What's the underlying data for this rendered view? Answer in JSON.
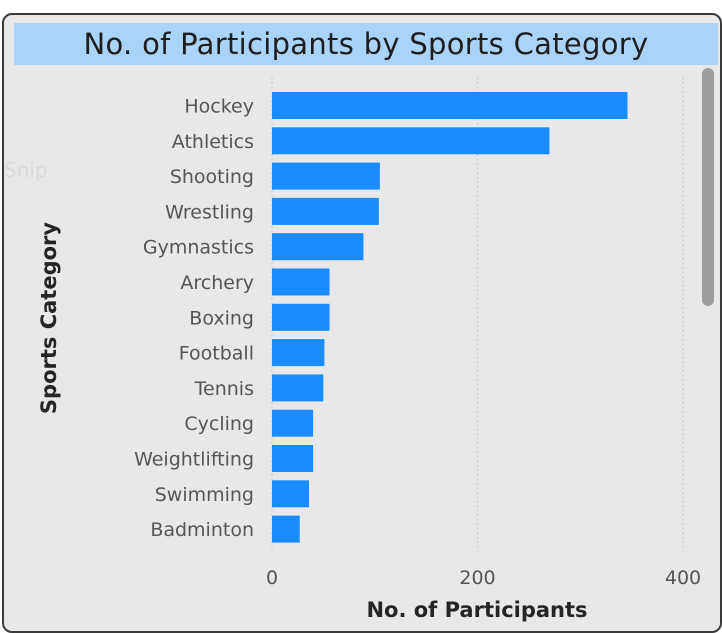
{
  "chart_data": {
    "type": "bar",
    "orientation": "horizontal",
    "title": "No. of Participants by Sports Category",
    "xlabel": "No. of Participants",
    "ylabel": "Sports Category",
    "categories": [
      "Hockey",
      "Athletics",
      "Shooting",
      "Wrestling",
      "Gymnastics",
      "Archery",
      "Boxing",
      "Football",
      "Tennis",
      "Cycling",
      "Weightlifting",
      "Swimming",
      "Badminton"
    ],
    "values": [
      346,
      270,
      105,
      104,
      89,
      56,
      56,
      51,
      50,
      40,
      40,
      36,
      27
    ],
    "xlim": [
      0,
      400
    ],
    "xticks": [
      "0",
      "200",
      "400"
    ],
    "grid": "vertical dotted",
    "bar_color": "#1a8cff"
  },
  "overlay": {
    "ghost_text": "Snip"
  },
  "colors": {
    "panel_bg": "#e8e8e8",
    "title_bg": "#a9d3f7",
    "scrollbar": "#9e9e9e"
  }
}
